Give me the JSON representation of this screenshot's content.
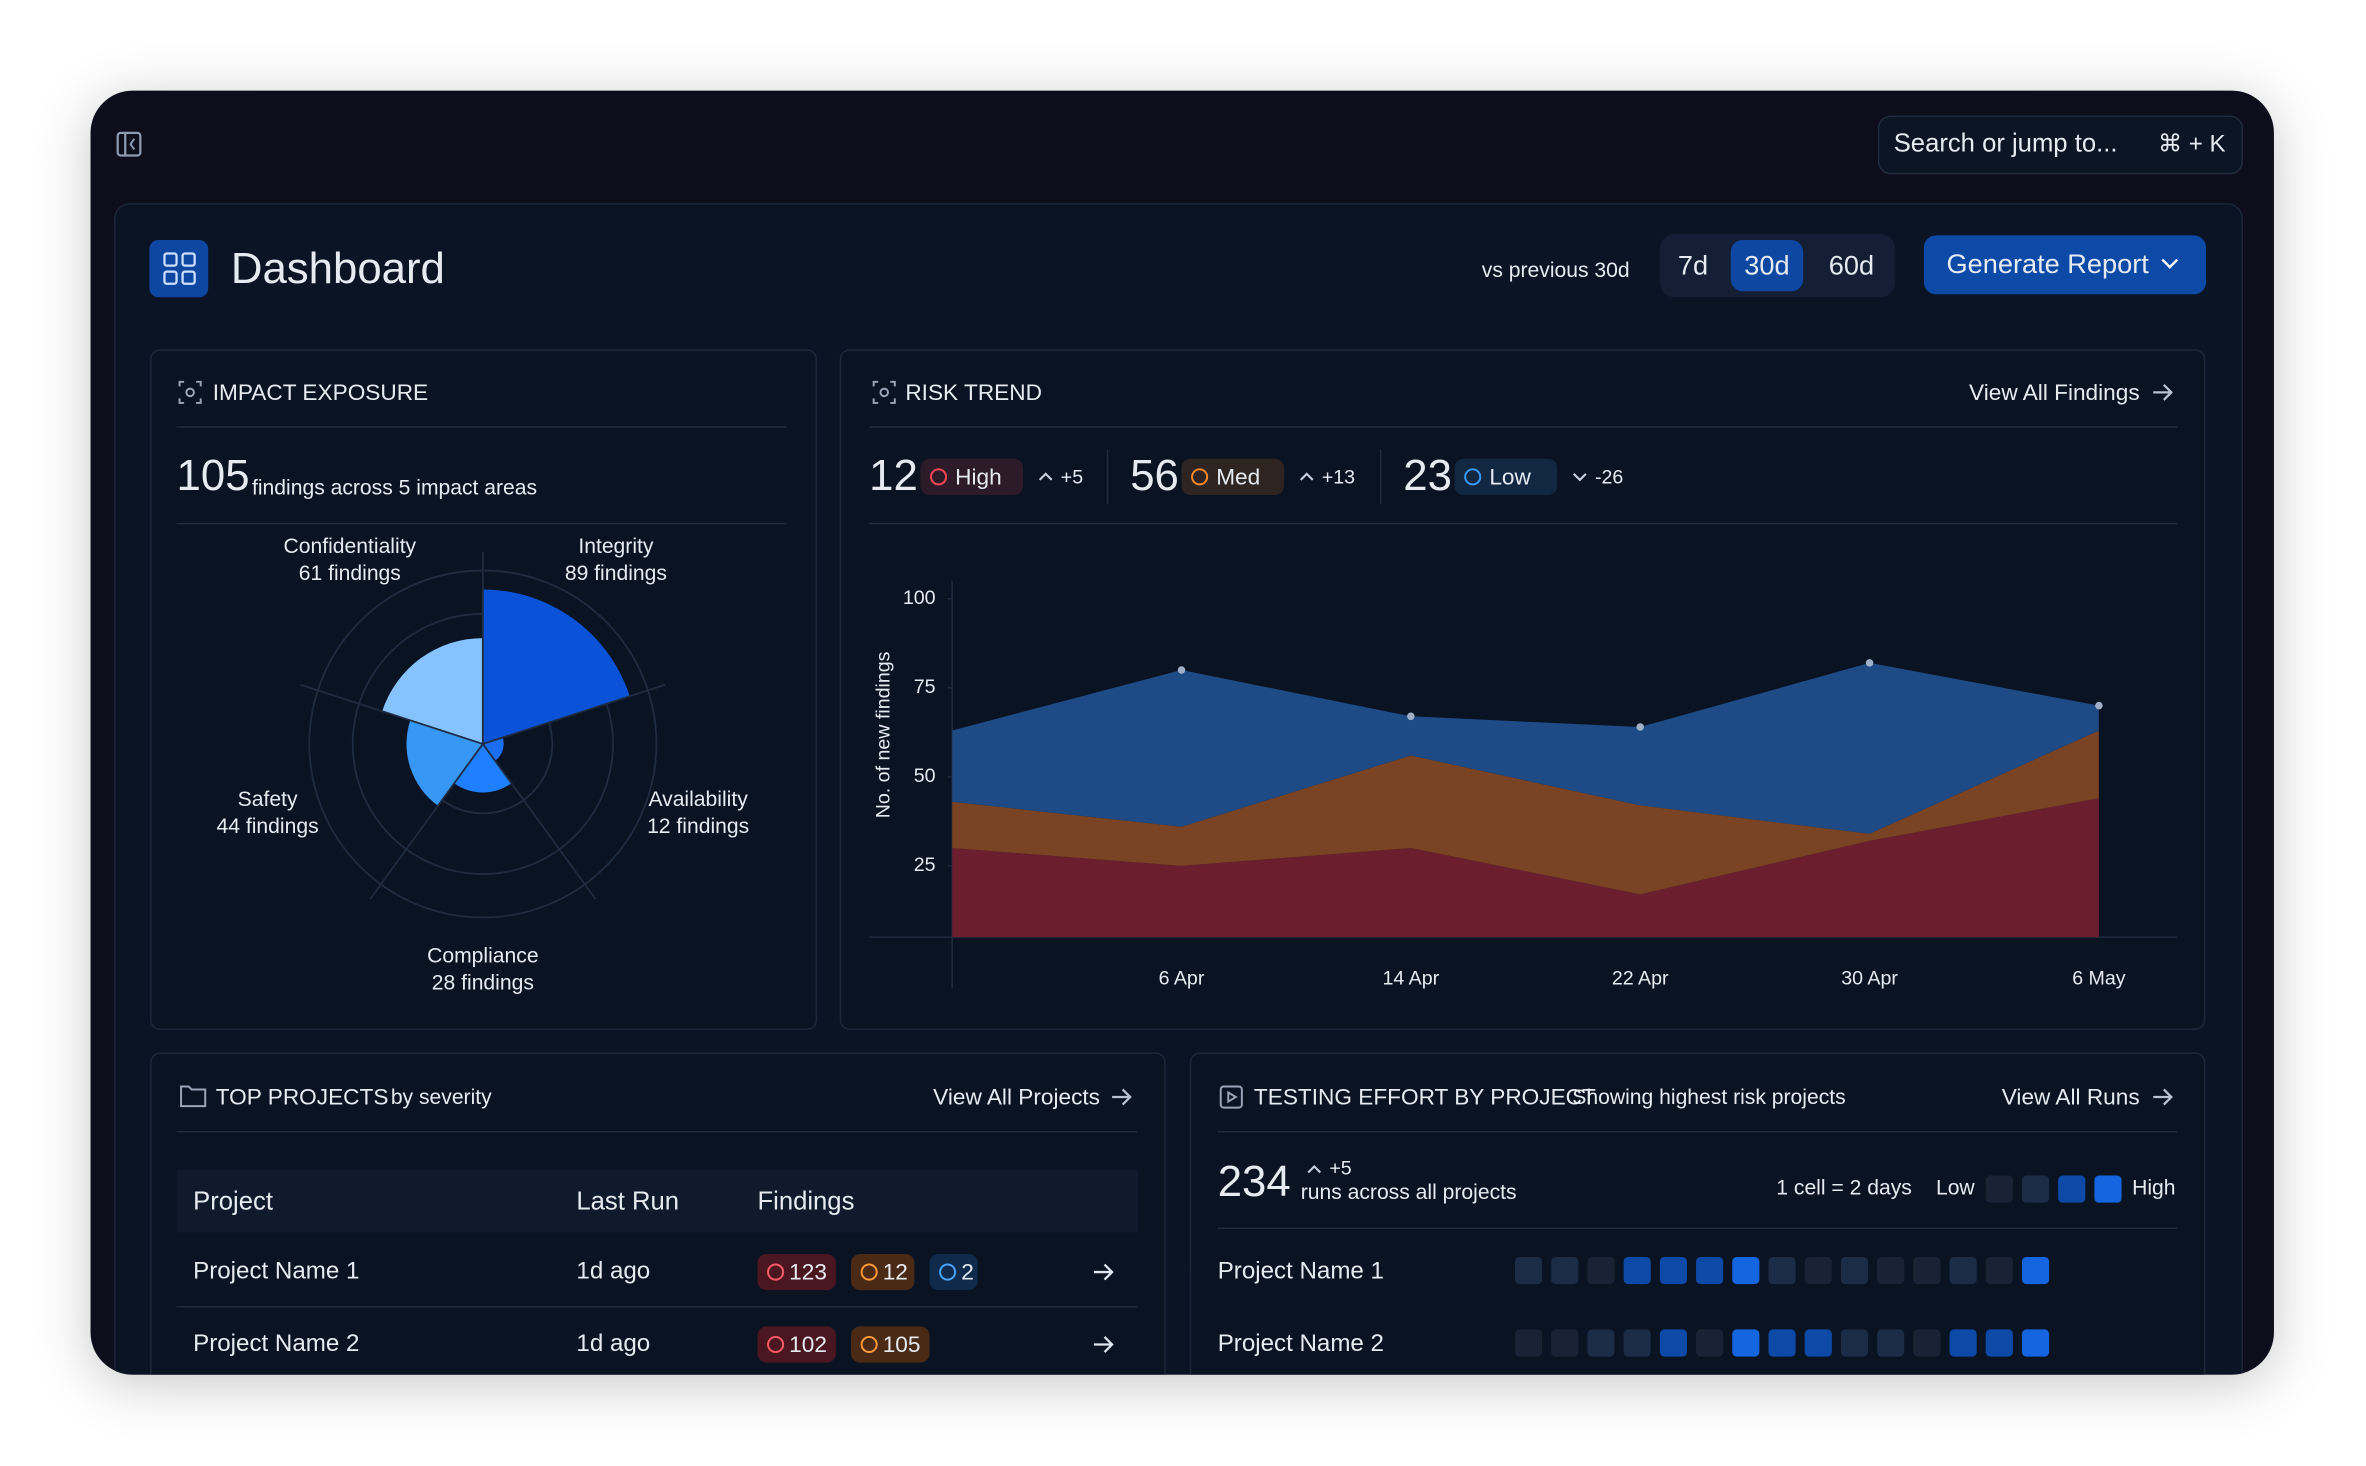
{
  "topbar": {
    "search_placeholder": "Search or jump to...",
    "shortcut": "⌘ + K"
  },
  "header": {
    "title": "Dashboard",
    "comparison": "vs previous 30d",
    "ranges": [
      "7d",
      "30d",
      "60d"
    ],
    "selected_range": "30d",
    "action": "Generate Report"
  },
  "impact_exposure": {
    "title": "IMPACT EXPOSURE",
    "total": 105,
    "total_label": "findings across 5 impact areas",
    "chart_data": {
      "type": "polar_area",
      "categories": [
        "Integrity",
        "Availability",
        "Compliance",
        "Safety",
        "Confidentiality"
      ],
      "values": [
        89,
        12,
        28,
        44,
        61
      ],
      "value_labels": [
        "89 findings",
        "12 findings",
        "28 findings",
        "44 findings",
        "61 findings"
      ],
      "colors": [
        "#0a52d8",
        "#1b6ef0",
        "#1e80ff",
        "#3797f5",
        "#86c2ff"
      ],
      "rlim": [
        0,
        100
      ]
    }
  },
  "risk_trend": {
    "title": "RISK TREND",
    "link": "View All Findings",
    "chart_data": {
      "type": "area",
      "stacked": true,
      "y_label": "No. of new findings",
      "categories": [
        null,
        "6 Apr",
        "14 Apr",
        "22 Apr",
        "30 Apr",
        "6 May"
      ],
      "series": [
        {
          "name": "High",
          "color": "#6b1f2e",
          "accent": "#ff4757",
          "total": 12,
          "delta": "+5",
          "trend": "up",
          "values": [
            30,
            25,
            30,
            17,
            32,
            44
          ]
        },
        {
          "name": "Med",
          "color": "#7a4323",
          "accent": "#ff8a2a",
          "total": 56,
          "delta": "+13",
          "trend": "up",
          "values": [
            13,
            11,
            26,
            25,
            2,
            19
          ]
        },
        {
          "name": "Low",
          "color": "#1e4a85",
          "accent": "#3b9cff",
          "total": 23,
          "delta": "-26",
          "trend": "down",
          "values": [
            20,
            44,
            11,
            22,
            48,
            7
          ]
        }
      ],
      "ylim": [
        5,
        105
      ],
      "yticks": [
        25,
        50,
        75,
        100
      ]
    }
  },
  "top_projects": {
    "title": "TOP PROJECTS",
    "subtitle": "by severity",
    "link": "View All Projects",
    "columns": [
      "Project",
      "Last Run",
      "Findings"
    ],
    "rows": [
      {
        "project": "Project Name 1",
        "last_run": "1d ago",
        "findings": {
          "high": 123,
          "med": 12,
          "low": 2
        }
      },
      {
        "project": "Project Name 2",
        "last_run": "1d ago",
        "findings": {
          "high": 102,
          "med": 105
        }
      }
    ]
  },
  "testing_effort": {
    "title": "TESTING EFFORT BY PROJECT",
    "subtitle": "Showing highest risk projects",
    "link": "View All Runs",
    "total": 234,
    "delta": "+5",
    "total_label": "runs across all projects",
    "cell_note": "1 cell = 2 days",
    "legend_low": "Low",
    "legend_high": "High",
    "levels": [
      "#182336",
      "#1b2c47",
      "#0d4aa8",
      "#1565e0"
    ],
    "rows": [
      {
        "project": "Project Name 1",
        "cells": [
          1,
          1,
          0,
          2,
          2,
          2,
          3,
          1,
          0,
          1,
          0,
          0,
          1,
          0,
          3
        ]
      },
      {
        "project": "Project Name 2",
        "cells": [
          0,
          0,
          1,
          1,
          2,
          0,
          3,
          2,
          2,
          1,
          1,
          0,
          2,
          2,
          3
        ]
      }
    ]
  }
}
